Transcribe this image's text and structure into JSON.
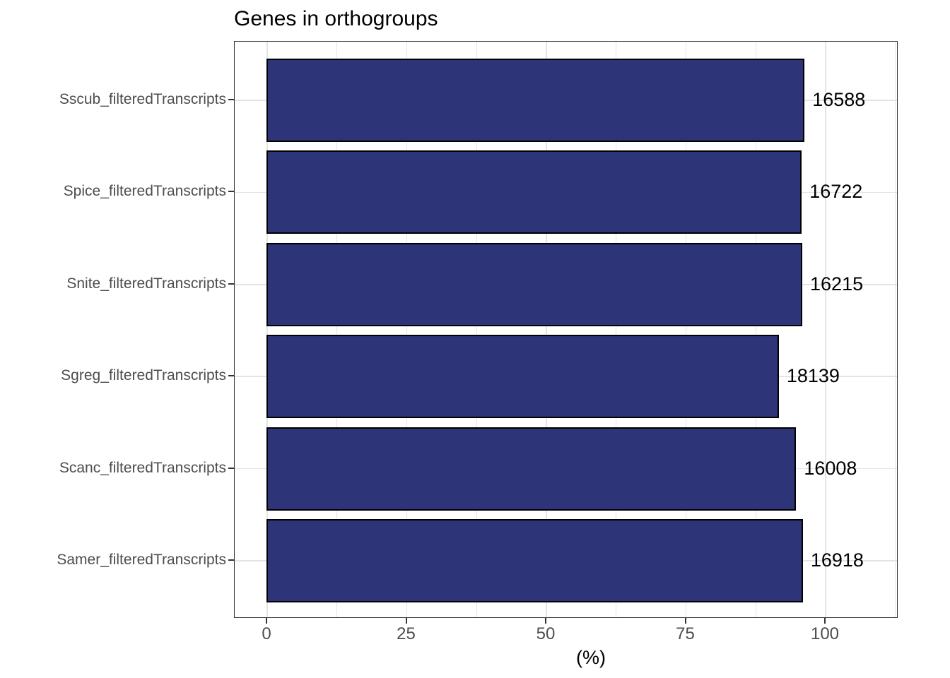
{
  "chart_data": {
    "type": "bar",
    "orientation": "horizontal",
    "title": "Genes in orthogroups",
    "xlabel": "(%)",
    "ylabel": "",
    "categories": [
      "Sscub_filteredTranscripts",
      "Spice_filteredTranscripts",
      "Snite_filteredTranscripts",
      "Sgreg_filteredTranscripts",
      "Scanc_filteredTranscripts",
      "Samer_filteredTranscripts"
    ],
    "series": [
      {
        "name": "Genes in orthogroups (%)",
        "values": [
          96.1,
          95.6,
          95.7,
          91.5,
          94.6,
          95.8
        ]
      }
    ],
    "bar_labels": [
      "16588",
      "16722",
      "16215",
      "18139",
      "16008",
      "16918"
    ],
    "x_ticks": [
      0,
      25,
      50,
      75,
      100
    ],
    "x_minor_ticks": [
      12.5,
      37.5,
      62.5,
      87.5,
      112.5
    ],
    "xlim": [
      -5.8,
      113.2
    ],
    "grid": true,
    "legend": false,
    "colors": {
      "bar_fill": "#2D3478",
      "bar_stroke": "#000000",
      "gridline": "#E4E4E4",
      "panel_border": "#333333",
      "axis_text": "#4D4D4D",
      "text": "#000000"
    }
  }
}
